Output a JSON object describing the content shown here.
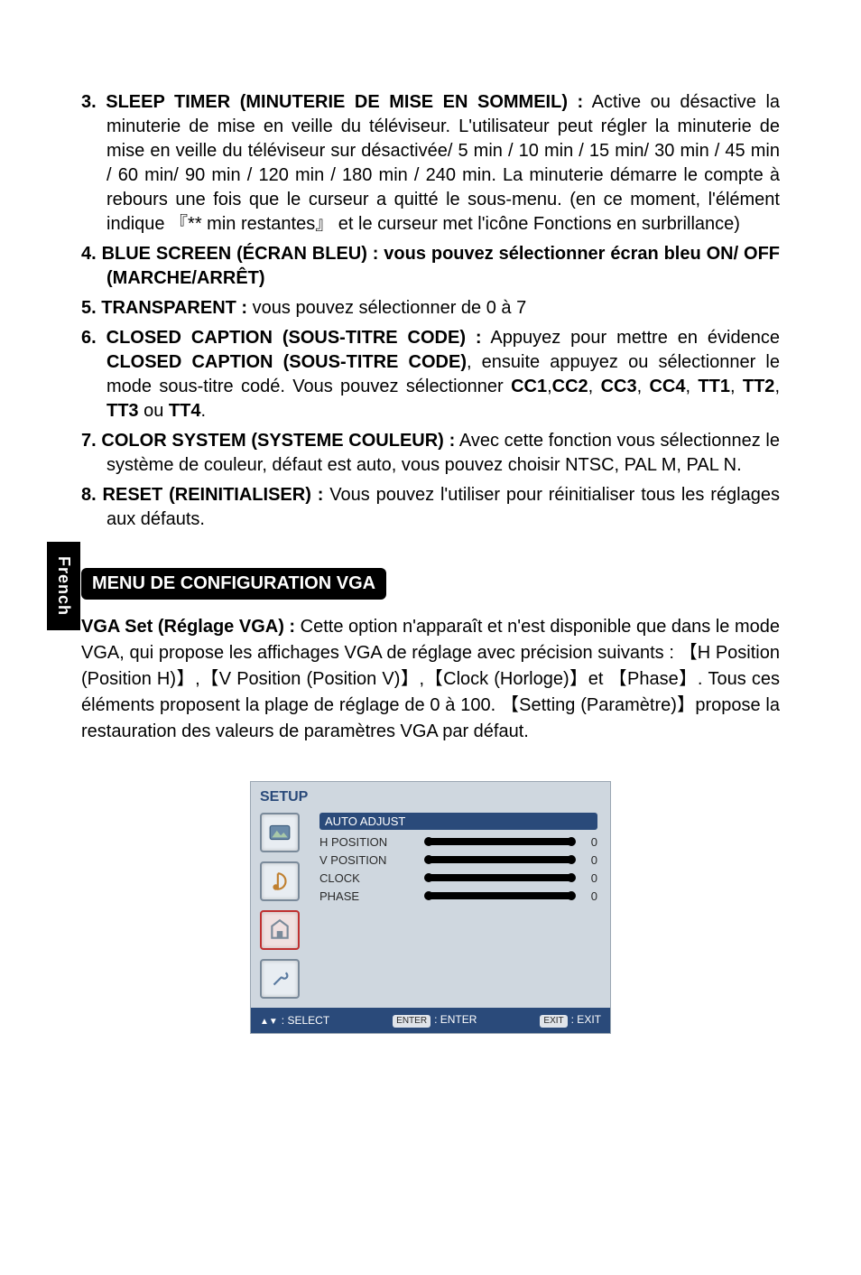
{
  "sideTab": "French",
  "list": [
    {
      "num": "3.",
      "lead": "SLEEP TIMER (MINUTERIE DE MISE EN SOMMEIL) :",
      "body": " Active ou désactive la minuterie de mise en veille du téléviseur. L'utilisateur peut régler la minuterie de mise en veille du téléviseur sur désactivée/ 5 min / 10 min / 15 min/ 30 min / 45 min / 60 min/ 90 min / 120 min / 180 min / 240 min. La minuterie démarre le compte à rebours une fois que le curseur a quitté le sous-menu. (en ce moment, l'élément indique 『** min restantes』 et le curseur met l'icône Fonctions en surbrillance)"
    },
    {
      "num": "4.",
      "lead": "BLUE SCREEN (ÉCRAN BLEU) : vous pouvez sélectionner écran bleu ON/ OFF (MARCHE/ARRÊT)",
      "body": ""
    },
    {
      "num": "5.",
      "lead": "TRANSPARENT :",
      "body": " vous pouvez sélectionner de 0 à 7"
    },
    {
      "num": "6.",
      "lead": "CLOSED CAPTION (SOUS-TITRE CODE) :",
      "body_html": " Appuyez pour mettre en évidence <b>CLOSED CAPTION (SOUS-TITRE CODE)</b>, ensuite appuyez ou sélectionner le mode sous-titre codé. Vous pouvez sélectionner <b>CC1</b>,<b>CC2</b>, <b>CC3</b>, <b>CC4</b>, <b>TT1</b>, <b>TT2</b>, <b>TT3</b> ou <b>TT4</b>."
    },
    {
      "num": "7.",
      "lead": "COLOR SYSTEM (SYSTEME COULEUR) :",
      "body": " Avec cette fonction vous sélectionnez le système de couleur, défaut est auto, vous pouvez choisir NTSC, PAL M, PAL N."
    },
    {
      "num": "8.",
      "lead": "RESET (REINITIALISER) :",
      "body": " Vous pouvez l'utiliser pour réinitialiser tous les réglages aux défauts."
    }
  ],
  "sectionLabel": "MENU DE CONFIGURATION VGA",
  "vgaPara_html": "<b>VGA Set (Réglage VGA) :</b> Cette option n'apparaît et n'est disponible que dans le mode VGA, qui propose les affichages VGA de réglage avec précision suivants : 【H Position (Position H)】,【V Position (Position V)】,【Clock (Horloge)】et 【Phase】. Tous ces éléments proposent la plage de réglage de 0 à 100. 【Setting (Paramètre)】propose la restauration des valeurs de paramètres VGA par défaut.",
  "osd": {
    "title": "SETUP",
    "header": "AUTO ADJUST",
    "rows": [
      {
        "label": "H POSITION",
        "value": "0"
      },
      {
        "label": "V POSITION",
        "value": "0"
      },
      {
        "label": "CLOCK",
        "value": "0"
      },
      {
        "label": "PHASE",
        "value": "0"
      }
    ],
    "footer": {
      "select": ": SELECT",
      "enterChip": "ENTER",
      "enter": ": ENTER",
      "exitChip": "EXIT",
      "exit": ": EXIT"
    },
    "colors": {
      "panel_bg": "#cfd7df",
      "title_color": "#2a4a7a",
      "header_bg": "#2a4a7a",
      "footer_bg": "#2a4a7a",
      "bar_color": "#000000",
      "icon_border": "#7a8a9a",
      "icon_sel_border": "#c03030"
    }
  }
}
